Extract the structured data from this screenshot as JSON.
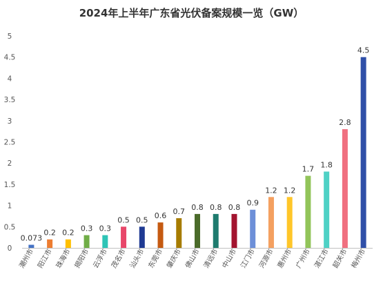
{
  "chart_data": {
    "type": "bar",
    "title": "2024年上半年广东省光伏备案规模一览（GW）",
    "categories": [
      "潮州市",
      "阳江市",
      "珠海市",
      "揭阳市",
      "云浮市",
      "茂名市",
      "汕头市",
      "东莞市",
      "肇庆市",
      "佛山市",
      "清远市",
      "中山市",
      "江门市",
      "河源市",
      "惠州市",
      "广州市",
      "湛江市",
      "韶关市",
      "梅州市"
    ],
    "values": [
      0.073,
      0.2,
      0.2,
      0.3,
      0.3,
      0.5,
      0.5,
      0.6,
      0.7,
      0.8,
      0.8,
      0.8,
      0.9,
      1.2,
      1.2,
      1.7,
      1.8,
      2.8,
      4.5
    ],
    "value_labels": [
      "0.073",
      "0.2",
      "0.2",
      "0.3",
      "0.3",
      "0.5",
      "0.5",
      "0.6",
      "0.7",
      "0.8",
      "0.8",
      "0.8",
      "0.9",
      "1.2",
      "1.2",
      "1.7",
      "1.8",
      "2.8",
      "4.5"
    ],
    "colors": [
      "#4472C4",
      "#ED7D31",
      "#FFC000",
      "#70AD47",
      "#2EC4B6",
      "#E8476A",
      "#1F3A93",
      "#C55A11",
      "#A67C00",
      "#4B6B2A",
      "#1E7B6E",
      "#A3142F",
      "#6D8FD8",
      "#F4A060",
      "#FFC629",
      "#92C45A",
      "#4FD1C5",
      "#F07080",
      "#2F4FA8"
    ],
    "yticks": [
      "0",
      "0.5",
      "1",
      "1.5",
      "2",
      "2.5",
      "3",
      "3.5",
      "4",
      "4.5",
      "5"
    ],
    "ylim": [
      0,
      5
    ],
    "xlabel": "",
    "ylabel": "",
    "grid": false,
    "legend": "none"
  }
}
